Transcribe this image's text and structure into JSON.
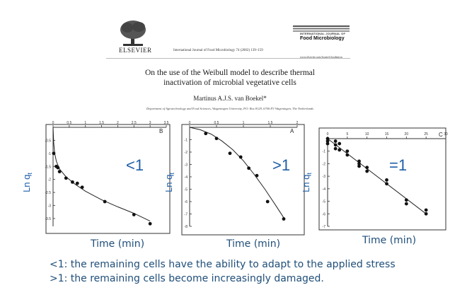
{
  "header": {
    "publisher": "ELSEVIER",
    "journal_citation": "International Journal of Food Microbiology 74 (2002) 139–159",
    "journal_top_line": "INTERNATIONAL JOURNAL OF",
    "journal_name": "Food Microbiology",
    "journal_url": "www.elsevier.com/locate/ijfoodmicro",
    "title_line1": "On the use of the Weibull model to describe thermal",
    "title_line2": "inactivation of microbial vegetative cells",
    "author": "Martinus A.J.S. van Boekel*",
    "affiliation": "Department of Agrotechnology and Food Sciences, Wageningen University, P.O. Box 8129, 6700 EV Wageningen, The Netherlands"
  },
  "colors": {
    "accent_blue": "#1f5fa8",
    "note_blue": "#1f4e79"
  },
  "y_axis_title": "Ln q",
  "y_axis_sub": "t",
  "time_label": "Time (min)",
  "chart_data": [
    {
      "type": "scatter",
      "panel_label": "B",
      "annotation": "<1",
      "xlim": [
        0,
        3.5
      ],
      "ylim": [
        -3.8,
        0
      ],
      "x_ticks": [
        "0",
        "0.5",
        "1",
        "1.5",
        "2",
        "2.5",
        "3",
        "3.5"
      ],
      "y_ticks": [
        "-0.5",
        "-1",
        "-1.5",
        "-2",
        "-2.5",
        "-3",
        "-3.5"
      ],
      "series": [
        {
          "points": [
            [
              0.02,
              -1.0
            ],
            [
              0.1,
              -1.5
            ],
            [
              0.15,
              -1.55
            ],
            [
              0.2,
              -1.7
            ],
            [
              0.4,
              -1.95
            ],
            [
              0.6,
              -2.1
            ],
            [
              0.75,
              -2.15
            ],
            [
              0.9,
              -2.3
            ],
            [
              1.6,
              -2.85
            ],
            [
              2.5,
              -3.35
            ],
            [
              3.0,
              -3.7
            ]
          ],
          "fit": [
            [
              0,
              0
            ],
            [
              0.02,
              -0.6
            ],
            [
              0.05,
              -1.0
            ],
            [
              0.1,
              -1.3
            ],
            [
              0.2,
              -1.6
            ],
            [
              0.4,
              -1.9
            ],
            [
              0.7,
              -2.2
            ],
            [
              1.0,
              -2.45
            ],
            [
              1.5,
              -2.78
            ],
            [
              2.0,
              -3.05
            ],
            [
              2.5,
              -3.3
            ],
            [
              3.0,
              -3.6
            ]
          ]
        }
      ]
    },
    {
      "type": "scatter",
      "panel_label": "A",
      "annotation": ">1",
      "xlim": [
        0,
        2
      ],
      "ylim": [
        -8,
        0
      ],
      "x_ticks": [
        "0",
        "0.5",
        "1",
        "1.5",
        "2"
      ],
      "y_ticks": [
        "-1",
        "-2",
        "-3",
        "-4",
        "-5",
        "-6",
        "-7",
        "-8"
      ],
      "series": [
        {
          "points": [
            [
              0.3,
              -0.5
            ],
            [
              0.5,
              -0.9
            ],
            [
              0.75,
              -2.1
            ],
            [
              0.95,
              -2.4
            ],
            [
              1.1,
              -3.3
            ],
            [
              1.25,
              -3.9
            ],
            [
              1.45,
              -6.0
            ],
            [
              1.75,
              -7.4
            ]
          ],
          "fit": [
            [
              0,
              0
            ],
            [
              0.2,
              -0.2
            ],
            [
              0.4,
              -0.55
            ],
            [
              0.6,
              -1.1
            ],
            [
              0.8,
              -1.8
            ],
            [
              1.0,
              -2.7
            ],
            [
              1.2,
              -3.8
            ],
            [
              1.4,
              -5.0
            ],
            [
              1.6,
              -6.3
            ],
            [
              1.75,
              -7.3
            ]
          ]
        }
      ]
    },
    {
      "type": "scatter",
      "panel_label": "C",
      "annotation": "=1",
      "xlim": [
        0,
        30
      ],
      "ylim": [
        -7,
        0
      ],
      "x_ticks": [
        "0",
        "5",
        "10",
        "15",
        "20",
        "25",
        "30"
      ],
      "y_ticks": [
        "-1",
        "-2",
        "-3",
        "-4",
        "-5",
        "-6",
        "-7"
      ],
      "series": [
        {
          "points": [
            [
              0,
              0
            ],
            [
              0,
              -0.2
            ],
            [
              0,
              -0.4
            ],
            [
              2,
              -0.2
            ],
            [
              2,
              -0.5
            ],
            [
              2,
              -0.8
            ],
            [
              3,
              -0.4
            ],
            [
              3,
              -0.9
            ],
            [
              5,
              -1.0
            ],
            [
              5,
              -1.3
            ],
            [
              8,
              -1.8
            ],
            [
              8,
              -2.0
            ],
            [
              8,
              -2.2
            ],
            [
              10,
              -2.3
            ],
            [
              10,
              -2.6
            ],
            [
              15,
              -3.3
            ],
            [
              15,
              -3.6
            ],
            [
              20,
              -4.9
            ],
            [
              20,
              -5.2
            ],
            [
              25,
              -5.7
            ],
            [
              25,
              -6.0
            ]
          ],
          "fit": [
            [
              0,
              0
            ],
            [
              25,
              -6.0
            ]
          ]
        }
      ]
    }
  ],
  "notes": {
    "line1": "<1: the remaining cells have the ability to adapt to the applied stress",
    "line2": ">1: the remaining cells become increasingly damaged."
  }
}
